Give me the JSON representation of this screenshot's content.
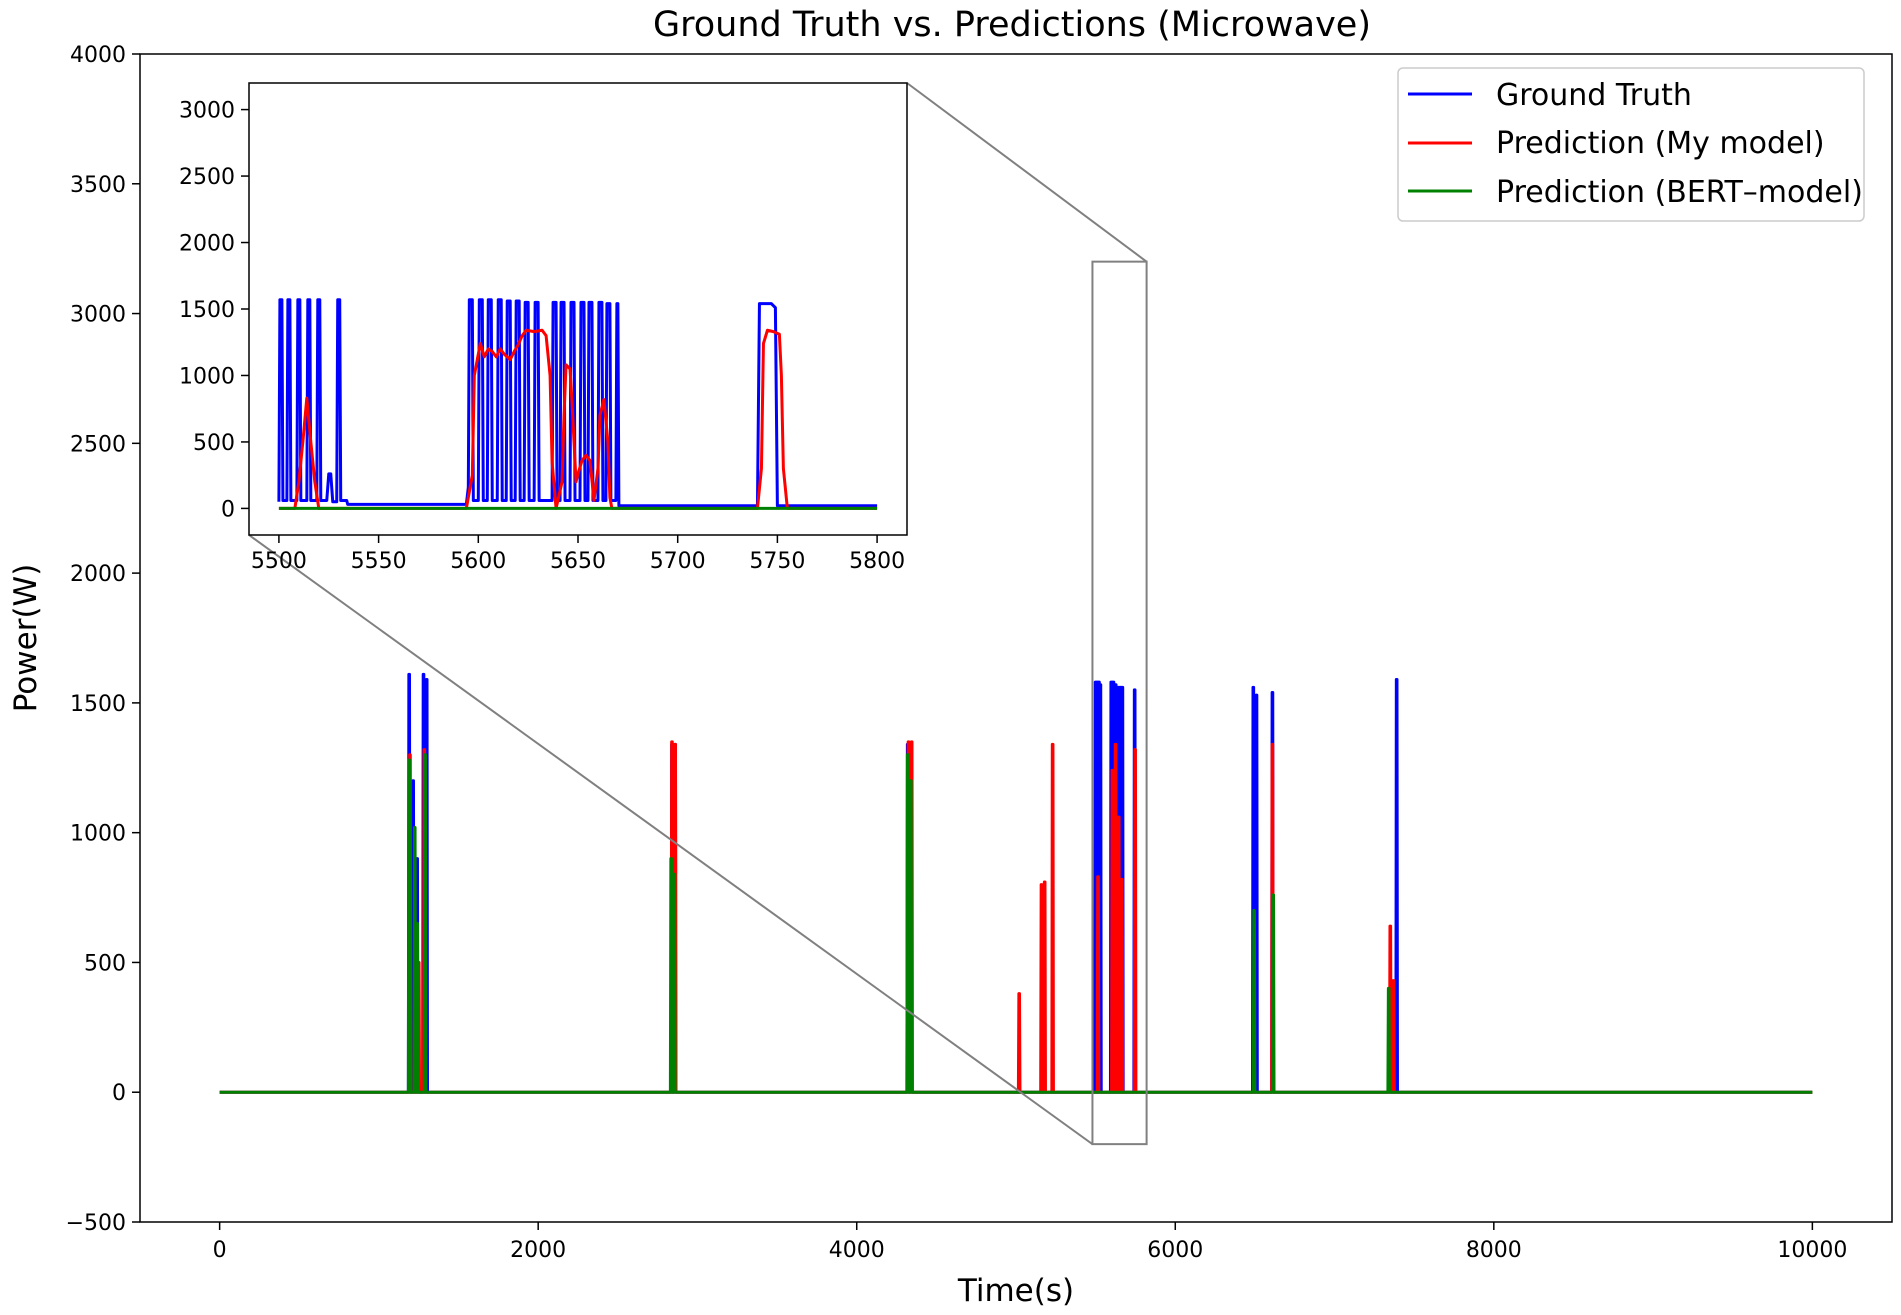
{
  "chart_data": {
    "type": "line",
    "title": "Ground Truth vs. Predictions (Microwave)",
    "xlabel": "Time(s)",
    "ylabel": "Power(W)",
    "xlim": [
      -500,
      10500
    ],
    "ylim": [
      -500,
      4000
    ],
    "xticks": [
      0,
      2000,
      4000,
      6000,
      8000,
      10000
    ],
    "yticks": [
      -500,
      0,
      500,
      1000,
      1500,
      2000,
      2500,
      3000,
      3500,
      4000
    ],
    "legend_position": "top-right",
    "series": [
      {
        "name": "Ground Truth",
        "color": "#0000ff",
        "bursts": [
          {
            "x": 1190,
            "peak": 1610
          },
          {
            "x": 1215,
            "peak": 1200
          },
          {
            "x": 1240,
            "peak": 900
          },
          {
            "x": 1280,
            "peak": 1610
          },
          {
            "x": 1300,
            "peak": 1590
          },
          {
            "x": 2840,
            "peak": 1340
          },
          {
            "x": 2860,
            "peak": 1340
          },
          {
            "x": 4320,
            "peak": 1340
          },
          {
            "x": 4340,
            "peak": 1300
          },
          {
            "x": 5500,
            "peak": 1580
          },
          {
            "x": 5507,
            "peak": 1580
          },
          {
            "x": 5514,
            "peak": 1580
          },
          {
            "x": 5521,
            "peak": 1580
          },
          {
            "x": 5530,
            "peak": 1570
          },
          {
            "x": 5598,
            "peak": 1580
          },
          {
            "x": 5605,
            "peak": 1580
          },
          {
            "x": 5612,
            "peak": 1580
          },
          {
            "x": 5619,
            "peak": 1570
          },
          {
            "x": 5626,
            "peak": 1570
          },
          {
            "x": 5633,
            "peak": 1560
          },
          {
            "x": 5640,
            "peak": 1560
          },
          {
            "x": 5647,
            "peak": 1560
          },
          {
            "x": 5654,
            "peak": 1560
          },
          {
            "x": 5661,
            "peak": 1560
          },
          {
            "x": 5668,
            "peak": 1560
          },
          {
            "x": 5745,
            "peak": 1550
          },
          {
            "x": 6490,
            "peak": 1560
          },
          {
            "x": 6510,
            "peak": 1530
          },
          {
            "x": 6610,
            "peak": 1540
          },
          {
            "x": 7390,
            "peak": 1590
          }
        ]
      },
      {
        "name": "Prediction (My model)",
        "color": "#ff0000",
        "bursts": [
          {
            "x": 1195,
            "peak": 1300
          },
          {
            "x": 1250,
            "peak": 500
          },
          {
            "x": 1285,
            "peak": 1320
          },
          {
            "x": 2840,
            "peak": 1350
          },
          {
            "x": 2860,
            "peak": 1340
          },
          {
            "x": 4325,
            "peak": 1350
          },
          {
            "x": 4345,
            "peak": 1350
          },
          {
            "x": 5020,
            "peak": 380
          },
          {
            "x": 5160,
            "peak": 800
          },
          {
            "x": 5180,
            "peak": 810
          },
          {
            "x": 5230,
            "peak": 1340
          },
          {
            "x": 5515,
            "peak": 830
          },
          {
            "x": 5605,
            "peak": 1240
          },
          {
            "x": 5625,
            "peak": 1340
          },
          {
            "x": 5645,
            "peak": 1060
          },
          {
            "x": 5657,
            "peak": 380
          },
          {
            "x": 5665,
            "peak": 820
          },
          {
            "x": 5748,
            "peak": 1320
          },
          {
            "x": 6610,
            "peak": 1340
          },
          {
            "x": 7350,
            "peak": 640
          },
          {
            "x": 7370,
            "peak": 430
          }
        ]
      },
      {
        "name": "Prediction (BERT–model)",
        "color": "#008000",
        "bursts": [
          {
            "x": 1190,
            "peak": 1280
          },
          {
            "x": 1225,
            "peak": 1020
          },
          {
            "x": 1240,
            "peak": 650
          },
          {
            "x": 1290,
            "peak": 1300
          },
          {
            "x": 2835,
            "peak": 900
          },
          {
            "x": 2855,
            "peak": 840
          },
          {
            "x": 4320,
            "peak": 1300
          },
          {
            "x": 4340,
            "peak": 1200
          },
          {
            "x": 6495,
            "peak": 700
          },
          {
            "x": 6615,
            "peak": 760
          },
          {
            "x": 7340,
            "peak": 400
          }
        ]
      }
    ],
    "inset": {
      "xlim": [
        5485,
        5815
      ],
      "ylim": [
        -200,
        3200
      ],
      "xticks": [
        5500,
        5550,
        5600,
        5650,
        5700,
        5750,
        5800
      ],
      "yticks": [
        0,
        500,
        1000,
        1500,
        2000,
        2500,
        3000
      ],
      "zoom_region": {
        "x": [
          5480,
          5820
        ],
        "y": [
          -200,
          3200
        ]
      },
      "series": [
        {
          "name": "Ground Truth",
          "color": "#0000ff",
          "points": [
            [
              5500,
              50
            ],
            [
              5500.5,
              1570
            ],
            [
              5501.5,
              1570
            ],
            [
              5502,
              60
            ],
            [
              5504,
              60
            ],
            [
              5504.5,
              1570
            ],
            [
              5505.5,
              1570
            ],
            [
              5506,
              60
            ],
            [
              5509,
              60
            ],
            [
              5509.5,
              1570
            ],
            [
              5510.5,
              1570
            ],
            [
              5511,
              60
            ],
            [
              5514,
              60
            ],
            [
              5514.5,
              1570
            ],
            [
              5515.5,
              1570
            ],
            [
              5516,
              60
            ],
            [
              5519,
              60
            ],
            [
              5519.5,
              1570
            ],
            [
              5520.5,
              1570
            ],
            [
              5521,
              60
            ],
            [
              5524,
              60
            ],
            [
              5525,
              260
            ],
            [
              5526,
              260
            ],
            [
              5527,
              50
            ],
            [
              5529,
              50
            ],
            [
              5529.5,
              1570
            ],
            [
              5530.5,
              1570
            ],
            [
              5531,
              60
            ],
            [
              5534,
              60
            ],
            [
              5534.5,
              30
            ],
            [
              5594,
              30
            ],
            [
              5595,
              160
            ],
            [
              5595.5,
              1570
            ],
            [
              5597,
              1570
            ],
            [
              5597.5,
              60
            ],
            [
              5600,
              60
            ],
            [
              5600.5,
              1570
            ],
            [
              5602,
              1570
            ],
            [
              5602.5,
              60
            ],
            [
              5604.5,
              60
            ],
            [
              5605,
              1570
            ],
            [
              5606.5,
              1570
            ],
            [
              5607,
              60
            ],
            [
              5609.5,
              60
            ],
            [
              5610,
              1570
            ],
            [
              5611.5,
              1570
            ],
            [
              5612,
              60
            ],
            [
              5614,
              60
            ],
            [
              5614.5,
              1560
            ],
            [
              5616,
              1560
            ],
            [
              5616.5,
              60
            ],
            [
              5618.5,
              60
            ],
            [
              5619,
              1560
            ],
            [
              5620.5,
              1560
            ],
            [
              5621,
              60
            ],
            [
              5623,
              60
            ],
            [
              5623.5,
              1550
            ],
            [
              5625,
              1550
            ],
            [
              5625.5,
              60
            ],
            [
              5628,
              60
            ],
            [
              5628.5,
              1550
            ],
            [
              5630,
              1550
            ],
            [
              5630.5,
              60
            ],
            [
              5637,
              60
            ],
            [
              5637.5,
              1550
            ],
            [
              5639,
              1550
            ],
            [
              5639.5,
              60
            ],
            [
              5641,
              60
            ],
            [
              5641.5,
              1550
            ],
            [
              5643,
              1550
            ],
            [
              5643.5,
              60
            ],
            [
              5646,
              60
            ],
            [
              5646.5,
              1550
            ],
            [
              5648,
              1550
            ],
            [
              5648.5,
              60
            ],
            [
              5651,
              60
            ],
            [
              5651.5,
              1550
            ],
            [
              5653,
              1550
            ],
            [
              5653.5,
              60
            ],
            [
              5655,
              60
            ],
            [
              5655.5,
              1550
            ],
            [
              5657,
              1550
            ],
            [
              5657.5,
              60
            ],
            [
              5660,
              60
            ],
            [
              5660.5,
              1550
            ],
            [
              5662,
              1550
            ],
            [
              5662.5,
              60
            ],
            [
              5664,
              60
            ],
            [
              5664.5,
              1540
            ],
            [
              5666,
              1540
            ],
            [
              5666.5,
              60
            ],
            [
              5669,
              60
            ],
            [
              5669.5,
              1540
            ],
            [
              5670,
              1540
            ],
            [
              5670.5,
              20
            ],
            [
              5740,
              20
            ],
            [
              5741,
              1540
            ],
            [
              5747,
              1540
            ],
            [
              5749,
              1510
            ],
            [
              5750,
              20
            ],
            [
              5800,
              20
            ]
          ]
        },
        {
          "name": "Prediction (My model)",
          "color": "#ff0000",
          "points": [
            [
              5500,
              0
            ],
            [
              5508,
              0
            ],
            [
              5510,
              200
            ],
            [
              5512,
              500
            ],
            [
              5514,
              830
            ],
            [
              5516,
              500
            ],
            [
              5518,
              200
            ],
            [
              5520,
              0
            ],
            [
              5594,
              0
            ],
            [
              5597,
              250
            ],
            [
              5598,
              1000
            ],
            [
              5601,
              1240
            ],
            [
              5603,
              1140
            ],
            [
              5605,
              1200
            ],
            [
              5607,
              1180
            ],
            [
              5609,
              1140
            ],
            [
              5611,
              1200
            ],
            [
              5613,
              1160
            ],
            [
              5616,
              1120
            ],
            [
              5618,
              1180
            ],
            [
              5620,
              1230
            ],
            [
              5622,
              1300
            ],
            [
              5624,
              1340
            ],
            [
              5628,
              1330
            ],
            [
              5632,
              1340
            ],
            [
              5634,
              1300
            ],
            [
              5636,
              1000
            ],
            [
              5637,
              350
            ],
            [
              5639,
              0
            ],
            [
              5642,
              200
            ],
            [
              5643,
              700
            ],
            [
              5644,
              1080
            ],
            [
              5646,
              1050
            ],
            [
              5647,
              800
            ],
            [
              5648,
              500
            ],
            [
              5649,
              200
            ],
            [
              5650,
              260
            ],
            [
              5652,
              360
            ],
            [
              5654,
              400
            ],
            [
              5656,
              360
            ],
            [
              5658,
              60
            ],
            [
              5660,
              300
            ],
            [
              5661,
              700
            ],
            [
              5663,
              820
            ],
            [
              5665,
              500
            ],
            [
              5666,
              80
            ],
            [
              5667,
              0
            ],
            [
              5740,
              0
            ],
            [
              5742,
              300
            ],
            [
              5743,
              1240
            ],
            [
              5745,
              1340
            ],
            [
              5748,
              1330
            ],
            [
              5751,
              1310
            ],
            [
              5752,
              1000
            ],
            [
              5753,
              300
            ],
            [
              5755,
              0
            ],
            [
              5800,
              0
            ]
          ]
        },
        {
          "name": "Prediction (BERT–model)",
          "color": "#008000",
          "points": [
            [
              5500,
              0
            ],
            [
              5800,
              0
            ]
          ]
        }
      ]
    }
  }
}
